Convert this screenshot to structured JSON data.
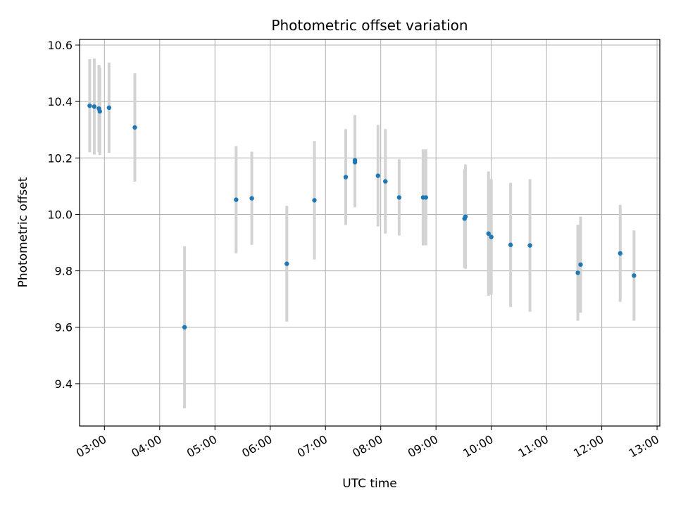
{
  "chart_data": {
    "type": "scatter",
    "title": "Photometric offset variation",
    "xlabel": "UTC time",
    "ylabel": "Photometric offset",
    "grid": true,
    "xlim": [
      "02:33",
      "13:03"
    ],
    "ylim": [
      9.25,
      10.62
    ],
    "x_ticks": [
      "03:00",
      "04:00",
      "05:00",
      "06:00",
      "07:00",
      "08:00",
      "09:00",
      "10:00",
      "11:00",
      "12:00",
      "13:00"
    ],
    "y_ticks": [
      9.4,
      9.6,
      9.8,
      10.0,
      10.2,
      10.4,
      10.6
    ],
    "errorbar_color": "#d3d3d3",
    "marker_color": "#1f77b4",
    "points": [
      {
        "time": "02:44",
        "y": 10.385,
        "err": 0.165
      },
      {
        "time": "02:49",
        "y": 10.382,
        "err": 0.17
      },
      {
        "time": "02:54",
        "y": 10.375,
        "err": 0.155
      },
      {
        "time": "02:55",
        "y": 10.365,
        "err": 0.155
      },
      {
        "time": "03:05",
        "y": 10.378,
        "err": 0.16
      },
      {
        "time": "03:33",
        "y": 10.308,
        "err": 0.192
      },
      {
        "time": "04:27",
        "y": 9.6,
        "err": 0.287
      },
      {
        "time": "05:23",
        "y": 10.052,
        "err": 0.19
      },
      {
        "time": "05:40",
        "y": 10.057,
        "err": 0.165
      },
      {
        "time": "06:18",
        "y": 9.825,
        "err": 0.205
      },
      {
        "time": "06:48",
        "y": 10.05,
        "err": 0.21
      },
      {
        "time": "07:22",
        "y": 10.132,
        "err": 0.17
      },
      {
        "time": "07:32",
        "y": 10.192,
        "err": 0.16
      },
      {
        "time": "07:32",
        "y": 10.185,
        "err": 0.16
      },
      {
        "time": "07:57",
        "y": 10.137,
        "err": 0.18
      },
      {
        "time": "08:05",
        "y": 10.117,
        "err": 0.185
      },
      {
        "time": "08:20",
        "y": 10.06,
        "err": 0.135
      },
      {
        "time": "08:46",
        "y": 10.06,
        "err": 0.17
      },
      {
        "time": "08:49",
        "y": 10.06,
        "err": 0.17
      },
      {
        "time": "09:31",
        "y": 9.985,
        "err": 0.175
      },
      {
        "time": "09:32",
        "y": 9.992,
        "err": 0.185
      },
      {
        "time": "09:57",
        "y": 9.932,
        "err": 0.22
      },
      {
        "time": "10:00",
        "y": 9.92,
        "err": 0.205
      },
      {
        "time": "10:21",
        "y": 9.892,
        "err": 0.22
      },
      {
        "time": "10:42",
        "y": 9.89,
        "err": 0.235
      },
      {
        "time": "11:34",
        "y": 9.793,
        "err": 0.17
      },
      {
        "time": "11:37",
        "y": 9.822,
        "err": 0.17
      },
      {
        "time": "12:20",
        "y": 9.862,
        "err": 0.172
      },
      {
        "time": "12:35",
        "y": 9.783,
        "err": 0.16
      }
    ]
  }
}
